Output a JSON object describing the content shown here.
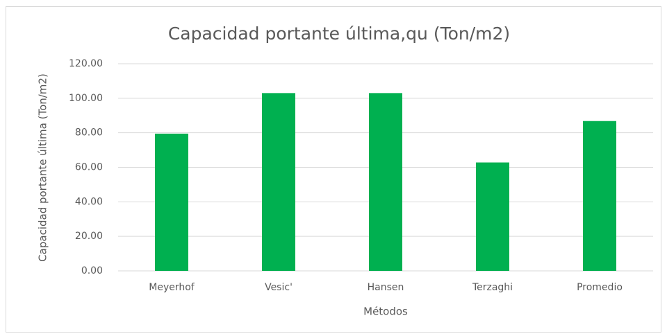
{
  "chart_data": {
    "type": "bar",
    "title": "Capacidad portante última,qu (Ton/m2)",
    "x_label": "Métodos",
    "y_label": "Capacidad portante última (Ton/m2)",
    "categories": [
      "Meyerhof",
      "Vesic'",
      "Hansen",
      "Terzaghi",
      "Promedio"
    ],
    "values": [
      79.5,
      103,
      103,
      62.8,
      86.8
    ],
    "color": "#00b050",
    "ylim": [
      0,
      120
    ],
    "yticks": [
      {
        "value": 0,
        "label": "0.00"
      },
      {
        "value": 20,
        "label": "20.00"
      },
      {
        "value": 40,
        "label": "40.00"
      },
      {
        "value": 60,
        "label": "60.00"
      },
      {
        "value": 80,
        "label": "80.00"
      },
      {
        "value": 100,
        "label": "100.00"
      },
      {
        "value": 120,
        "label": "120.00"
      }
    ],
    "grid": true
  }
}
